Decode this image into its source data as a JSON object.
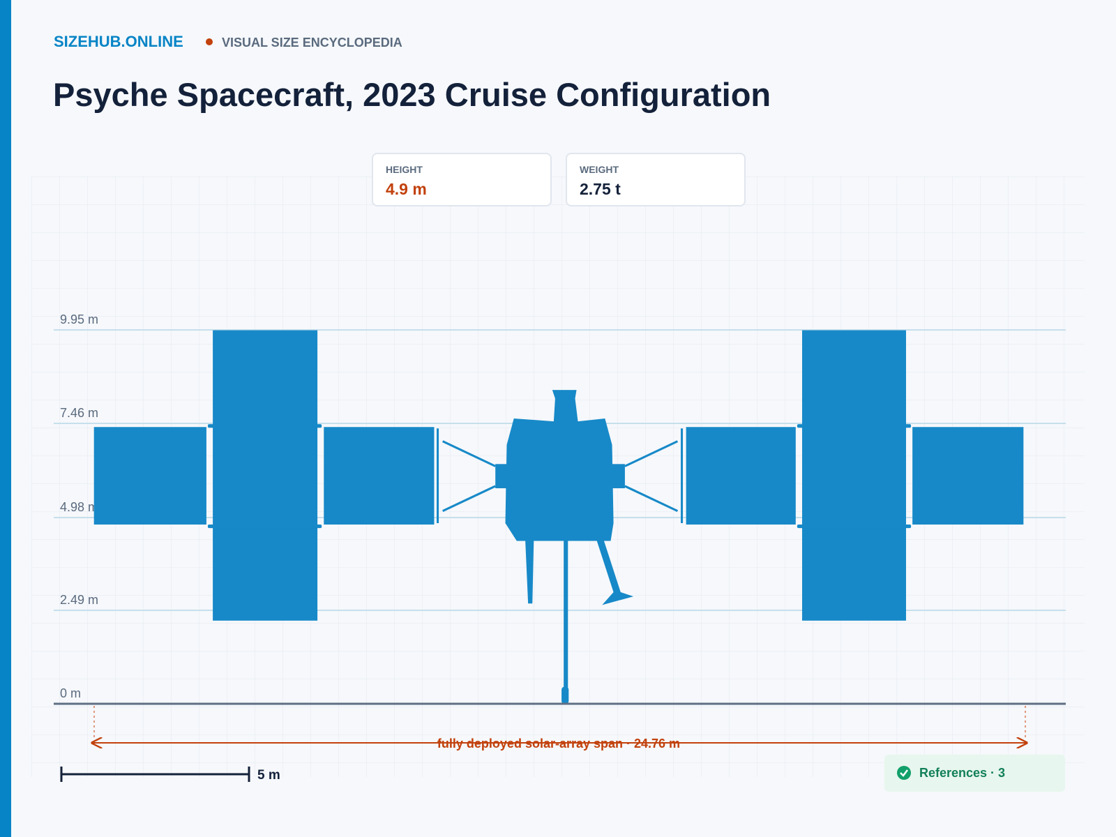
{
  "header": {
    "brand": "SIZEHUB.ONLINE",
    "tagline": "VISUAL SIZE ENCYCLOPEDIA"
  },
  "title": "Psyche Spacecraft, 2023 Cruise Configuration",
  "stats": [
    {
      "label": "HEIGHT",
      "value": "4.9 m"
    },
    {
      "label": "WEIGHT",
      "value": "2.75 t"
    }
  ],
  "ruler_labels": [
    "9.95 m",
    "7.46 m",
    "4.98 m",
    "2.49 m",
    "0 m"
  ],
  "span_label": "fully deployed solar-array span · 24.76 m",
  "scale_bar": "5 m",
  "references": "References · 3"
}
